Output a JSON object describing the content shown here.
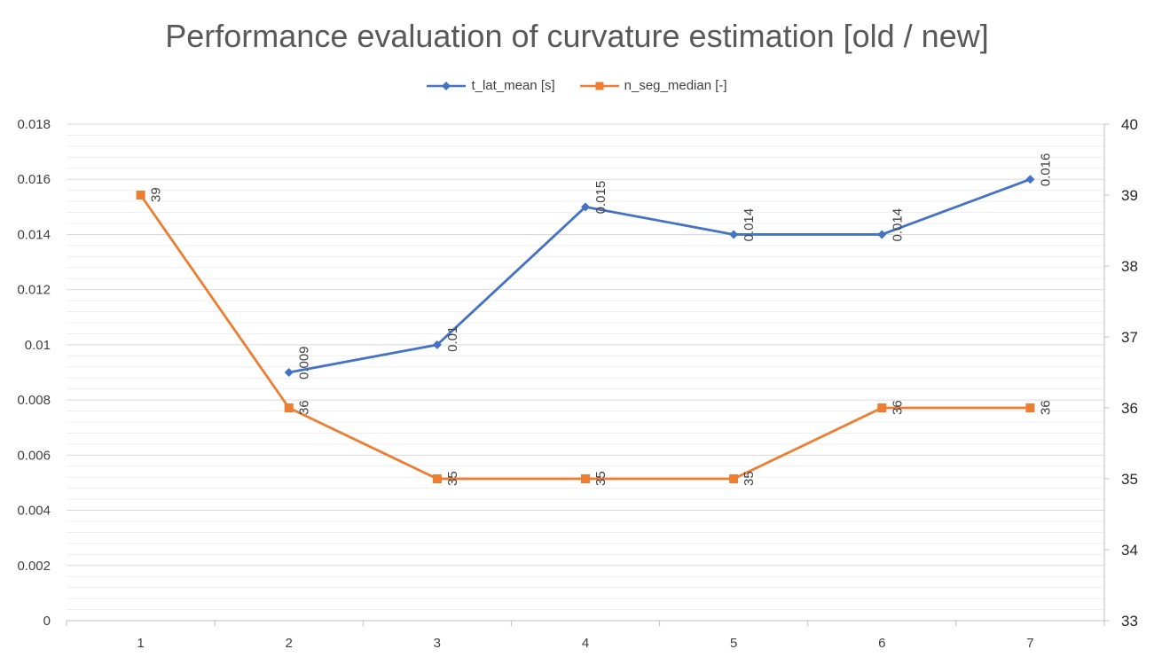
{
  "chart_data": {
    "type": "line",
    "title": "Performance evaluation of curvature estimation [old / new]",
    "xlabel": "",
    "ylabel": "",
    "categories": [
      "1",
      "2",
      "3",
      "4",
      "5",
      "6",
      "7"
    ],
    "series": [
      {
        "name": "t_lat_mean [s]",
        "axis": "left",
        "color": "#4472C4",
        "marker": "diamond",
        "values": [
          null,
          0.009,
          0.01,
          0.015,
          0.014,
          0.014,
          0.016
        ],
        "labels": [
          null,
          "0.009",
          "0.01",
          "0.015",
          "0.014",
          "0.014",
          "0.016"
        ]
      },
      {
        "name": "n_seg_median [-]",
        "axis": "right",
        "color": "#ED7D31",
        "marker": "square",
        "values": [
          39,
          36,
          35,
          35,
          35,
          36,
          36
        ],
        "labels": [
          "39",
          "36",
          "35",
          "35",
          "35",
          "36",
          "36"
        ]
      }
    ],
    "y_left": {
      "range": [
        0,
        0.018
      ],
      "ticks": [
        0,
        0.002,
        0.004,
        0.006,
        0.008,
        0.01,
        0.012,
        0.014,
        0.016,
        0.018
      ],
      "tick_labels": [
        "0",
        "0.002",
        "0.004",
        "0.006",
        "0.008",
        "0.01",
        "0.012",
        "0.014",
        "0.016",
        "0.018"
      ]
    },
    "y_right": {
      "range": [
        33,
        40
      ],
      "ticks": [
        33,
        34,
        35,
        36,
        37,
        38,
        39,
        40
      ],
      "tick_labels": [
        "33",
        "34",
        "35",
        "36",
        "37",
        "38",
        "39",
        "40"
      ]
    },
    "grid": true,
    "minor_grid": true,
    "legend_position": "top-center",
    "colors": {
      "major_grid": "#d9d9d9",
      "minor_grid": "#efefef",
      "axis": "#bfbfbf"
    }
  }
}
